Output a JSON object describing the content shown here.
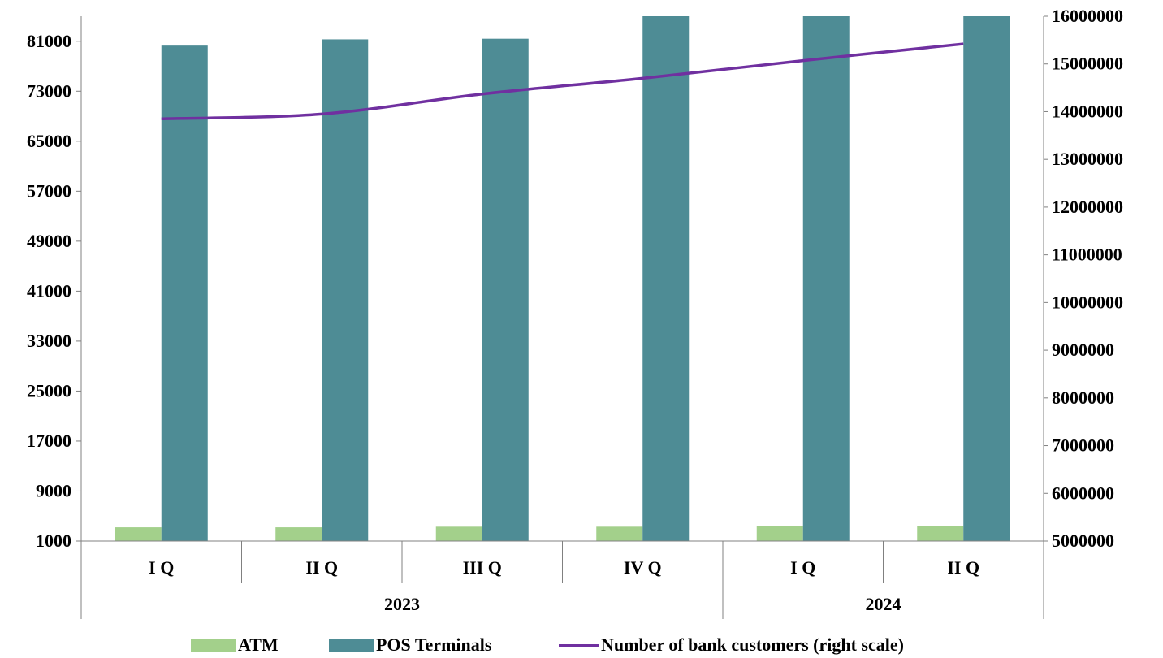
{
  "chart_data": {
    "type": "bar",
    "categories": [
      "I Q",
      "II Q",
      "III Q",
      "IV Q",
      "I Q",
      "II Q"
    ],
    "groups": [
      {
        "label": "2023",
        "span": 4
      },
      {
        "label": "2024",
        "span": 2
      }
    ],
    "series": [
      {
        "name": "ATM",
        "type": "bar",
        "axis": "left",
        "color": "#a3d08b",
        "values": [
          3200,
          3200,
          3300,
          3300,
          3400,
          3400
        ]
      },
      {
        "name": "POS Terminals",
        "type": "bar",
        "axis": "left",
        "color": "#4e8c95",
        "values": [
          80300,
          81300,
          81400,
          85600,
          86100,
          86600
        ]
      },
      {
        "name": "Number of bank customers (right scale)",
        "type": "line",
        "axis": "right",
        "color": "#7030a0",
        "values": [
          13850000,
          13950000,
          14370000,
          14700000,
          15070000,
          15420000
        ]
      }
    ],
    "y_left": {
      "ylim": [
        1000,
        85000
      ],
      "ticks": [
        "1000",
        "9000",
        "17000",
        "25000",
        "33000",
        "41000",
        "49000",
        "57000",
        "65000",
        "73000",
        "81000"
      ]
    },
    "y_right": {
      "ylim": [
        5000000,
        16000000
      ],
      "ticks": [
        "5000000",
        "6000000",
        "7000000",
        "8000000",
        "9000000",
        "10000000",
        "11000000",
        "12000000",
        "13000000",
        "14000000",
        "15000000",
        "16000000"
      ]
    },
    "legend_position": "bottom",
    "grid": false
  }
}
